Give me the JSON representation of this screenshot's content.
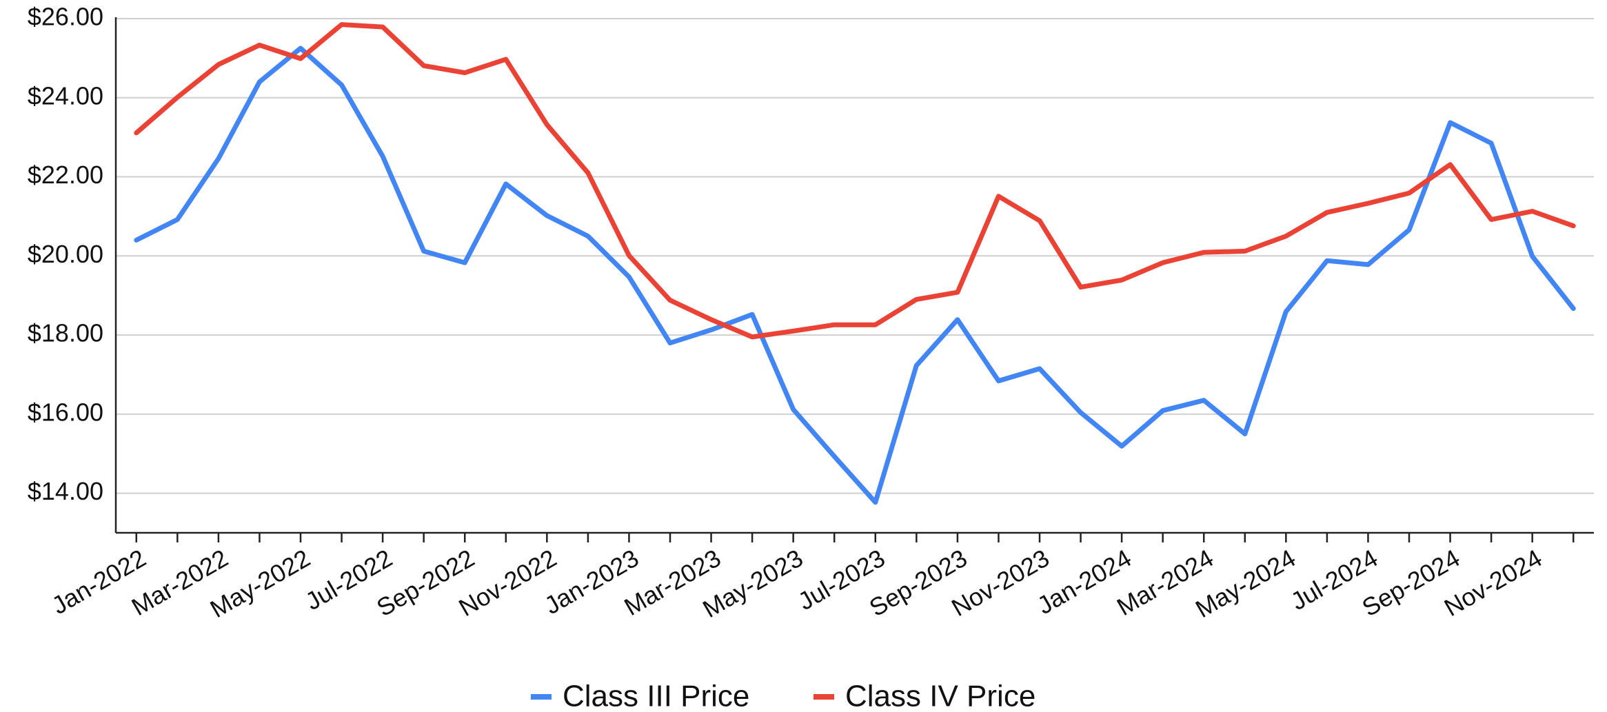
{
  "chart_data": {
    "type": "line",
    "categories": [
      "Jan-2022",
      null,
      "Mar-2022",
      null,
      "May-2022",
      null,
      "Jul-2022",
      null,
      "Sep-2022",
      null,
      "Nov-2022",
      null,
      "Jan-2023",
      null,
      "Mar-2023",
      null,
      "May-2023",
      null,
      "Jul-2023",
      null,
      "Sep-2023",
      null,
      "Nov-2023",
      null,
      "Jan-2024",
      null,
      "Mar-2024",
      null,
      "May-2024",
      null,
      "Jul-2024",
      null,
      "Sep-2024",
      null,
      "Nov-2024",
      null
    ],
    "series": [
      {
        "name": "Class III Price",
        "color": "#4285f4",
        "values": [
          20.4,
          20.92,
          22.46,
          24.4,
          25.25,
          24.32,
          22.52,
          20.12,
          19.83,
          21.82,
          21.02,
          20.5,
          19.47,
          17.8,
          18.13,
          18.52,
          16.12,
          14.93,
          13.77,
          17.23,
          18.39,
          16.84,
          17.15,
          16.04,
          15.19,
          16.09,
          16.35,
          15.5,
          18.59,
          19.88,
          19.78,
          20.66,
          23.37,
          22.85,
          19.99,
          18.67
        ]
      },
      {
        "name": "Class IV Price",
        "color": "#ea4335",
        "values": [
          23.11,
          24.01,
          24.84,
          25.33,
          24.99,
          25.85,
          25.79,
          24.81,
          24.63,
          24.97,
          23.32,
          22.1,
          20.01,
          18.88,
          18.39,
          17.95,
          18.1,
          18.26,
          18.26,
          18.9,
          19.08,
          21.51,
          20.89,
          19.21,
          19.39,
          19.83,
          20.09,
          20.12,
          20.5,
          21.1,
          21.33,
          21.59,
          22.31,
          20.92,
          21.13,
          20.76
        ]
      }
    ],
    "ylim": [
      13,
      26
    ],
    "yticks": [
      {
        "value": 14,
        "label": "$14.00"
      },
      {
        "value": 16,
        "label": "$16.00"
      },
      {
        "value": 18,
        "label": "$18.00"
      },
      {
        "value": 20,
        "label": "$20.00"
      },
      {
        "value": 22,
        "label": "$22.00"
      },
      {
        "value": 24,
        "label": "$24.00"
      },
      {
        "value": 26,
        "label": "$26.00"
      }
    ],
    "grid": true,
    "legend": "bottom"
  }
}
